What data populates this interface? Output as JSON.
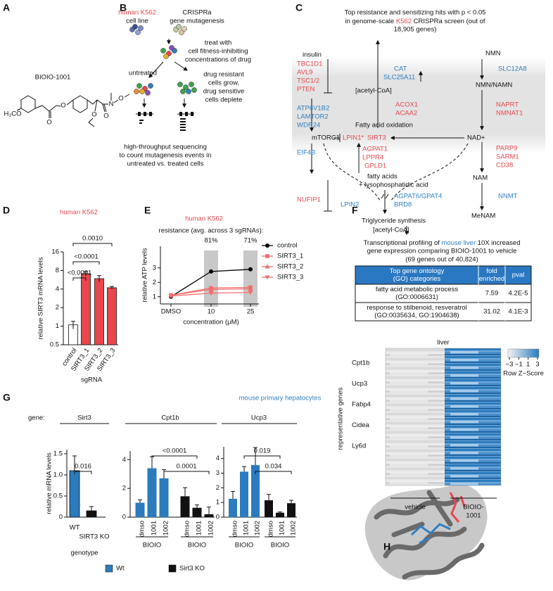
{
  "panel_labels": [
    "A",
    "B",
    "C",
    "D",
    "E",
    "F",
    "G",
    "H"
  ],
  "panel_a": {
    "compound": "BIOIO-1001",
    "atoms": [
      "H₃CO",
      "O",
      "O",
      "O",
      "O",
      "N",
      "O"
    ]
  },
  "panel_b": {
    "cell_line": [
      "human K562",
      "cell line"
    ],
    "method": [
      "CRISPRa",
      "gene mutagenesis"
    ],
    "treatment": [
      "treat with",
      "cell fitness-inhibiting",
      "concentrations of drug"
    ],
    "untreated": "untreated",
    "outcome": [
      "drug resistant",
      "cells grow,",
      "drug sensitive",
      "cells deplete"
    ],
    "sequencing": [
      "high-throughput sequencing",
      "to count mutagenesis events in",
      "untreated vs. treated cells"
    ]
  },
  "panel_c": {
    "title": [
      "Top resistance and sensitizing hits with p < 0.05",
      [
        "in genome-scale ",
        "K562",
        " CRISPRa screen (out of"
      ],
      "18,905 genes)"
    ],
    "resistance_hits": [
      "TBC1D1",
      "AVL9",
      "TSC1/2",
      "PTEN",
      "ACOX1",
      "ACAA2",
      "NAPRT",
      "NMNAT1",
      "LPIN1*",
      "SIRT3",
      "AGPAT1",
      "LPPR4",
      "GPLD1",
      "PARP9",
      "SARM1",
      "CD38",
      "NUFIP1"
    ],
    "sensitizing_hits": [
      "CAT",
      "SLC25A11",
      "SLC12A8",
      "ATP6V1B2",
      "LAMTOR2",
      "WDR24",
      "EIF4B",
      "AGPAT6/GPAT4",
      "BRD8",
      "LPIN2",
      "NNMT"
    ],
    "metabolites": [
      "insulin",
      "[acetyl-CoA]",
      "NMN",
      "NMN/NAMN",
      "Fatty acid oxidation",
      "mTORC1",
      "NAD+",
      "fatty acids",
      "+ lysophosphatidic acid",
      "NAM",
      "MeNAM",
      "Triglyceride synthesis",
      "[acetyl-CoA]"
    ]
  },
  "chart_data": [
    {
      "type": "bar",
      "title": "human K562",
      "y_label": "relative SIRT3 mRNA levels",
      "x_label": "sgRNA",
      "categories": [
        "control",
        "SIRT3_1",
        "SIRT3_2",
        "SIRT3_3"
      ],
      "values": [
        1.05,
        7.1,
        5.9,
        4.2
      ],
      "errors": [
        0.15,
        0.6,
        0.7,
        0.2
      ],
      "colors": [
        "#ffffff",
        "#e8474d",
        "#e8474d",
        "#e8474d"
      ],
      "log_scale": true,
      "ylim": [
        0.5,
        16
      ],
      "yticks": [
        0.5,
        1,
        2,
        4,
        8,
        16
      ],
      "annotations": [
        "<0.0001",
        "<0.0001",
        "0.0010"
      ]
    },
    {
      "type": "line",
      "title": "human K562",
      "annotation": "resistance (avg. across 3 sgRNAs):",
      "annotation_values": [
        "81%",
        "71%"
      ],
      "x_label": "concentration (µM)",
      "y_label": "relative ATP levels",
      "categories": [
        "DMSO",
        "10",
        "25"
      ],
      "series": [
        {
          "name": "control",
          "color": "#000000",
          "marker": "circle",
          "values": [
            1.0,
            2.75,
            2.9
          ]
        },
        {
          "name": "SIRT3_1",
          "color": "#f26d6d",
          "marker": "square",
          "values": [
            1.1,
            1.6,
            1.65
          ]
        },
        {
          "name": "SIRT3_2",
          "color": "#f26d6d",
          "marker": "triangle-up",
          "values": [
            1.1,
            1.5,
            1.55
          ]
        },
        {
          "name": "SIRT3_3",
          "color": "#f26d6d",
          "marker": "triangle-down",
          "values": [
            1.05,
            1.25,
            1.3
          ]
        }
      ],
      "ylim": [
        0.5,
        4.5
      ],
      "yticks": [
        1,
        2,
        3
      ],
      "legend": "right"
    },
    {
      "type": "bar",
      "title": "Sirt3",
      "y_label": "relative mRNA levels",
      "x_label": "genotype",
      "categories": [
        "WT",
        "SIRT3 KO"
      ],
      "values": [
        1.1,
        0.15
      ],
      "errors": [
        0.35,
        0.1
      ],
      "colors": [
        "#2b7bbd",
        "#111111"
      ],
      "ylim": [
        0,
        1.6
      ],
      "yticks": [
        0,
        0.5,
        {
          "value": 1,
          "label": "1.0"
        },
        1.5
      ],
      "annotations": [
        "0.016"
      ]
    },
    {
      "type": "cluster_bar",
      "title": "Cpt1b",
      "categories": [
        "dmso",
        "1001",
        "1002"
      ],
      "group_label": "BIOIO",
      "series": [
        {
          "name": "Wt",
          "color": "#2b7bbd",
          "values": [
            1.0,
            3.4,
            2.7
          ],
          "errors": [
            0.2,
            0.8,
            0.6
          ]
        },
        {
          "name": "Sirt3 KO",
          "color": "#111111",
          "values": [
            1.45,
            0.65,
            0.2
          ],
          "errors": [
            0.6,
            0.2,
            0.5
          ]
        }
      ],
      "ylim": [
        0,
        4.6
      ],
      "yticks": [
        0,
        2,
        4
      ],
      "annotations": [
        "<0.0001",
        "0.0001"
      ],
      "legend": "bottom"
    },
    {
      "type": "cluster_bar",
      "title": "Ucp3",
      "categories": [
        "dmso",
        "1001",
        "1002"
      ],
      "group_label": "BIOIO",
      "series": [
        {
          "color": "#2b7bbd",
          "values": [
            1.25,
            3.1,
            3.55
          ],
          "errors": [
            0.5,
            0.35,
            1.2
          ]
        },
        {
          "color": "#111111",
          "values": [
            1.15,
            0.3,
            0.95
          ],
          "errors": [
            0.4,
            0.05,
            0.2
          ]
        }
      ],
      "ylim": [
        0,
        4.8
      ],
      "yticks": [
        0,
        1,
        2,
        3,
        4
      ],
      "annotations": [
        "0.019",
        "0.034"
      ]
    }
  ],
  "panel_f": {
    "title": [
      [
        "Transcriptional profiling of ",
        "mouse liver",
        " 10X increased"
      ],
      "gene expression comparing BIOIO-1001 to vehicle",
      "(69 genes out of 40,824)"
    ],
    "table": {
      "header": [
        [
          "Top gene ontology",
          "(GO) categories"
        ],
        [
          "fold",
          "enriched"
        ],
        [
          "pval"
        ]
      ],
      "rows": [
        [
          [
            "fatty acid metabolic process",
            "(GO:0006631)"
          ],
          7.59,
          "4.2E-5"
        ],
        [
          [
            "response to stilbenoid, resveratrol",
            "(GO:0035634, GO:1904638)"
          ],
          31.02,
          "4.1E-3"
        ]
      ]
    },
    "heatmap": {
      "title": "liver",
      "genes": [
        "Cpt1b",
        "Ucp3",
        "Fabp4",
        "Cidea",
        "Ly6d"
      ],
      "y_label": "representative genes",
      "groups": [
        [
          "vehicle"
        ],
        [
          "BIOIO-",
          "1001"
        ]
      ],
      "key_ticks": [
        {
          "value": -3,
          "label": "−3"
        },
        {
          "value": -1,
          "label": "−1"
        },
        1,
        3
      ],
      "key_label": "Row Z−Score"
    }
  },
  "panel_g": {
    "title": "mouse primary hepatocytes",
    "gene_label": "gene:"
  }
}
